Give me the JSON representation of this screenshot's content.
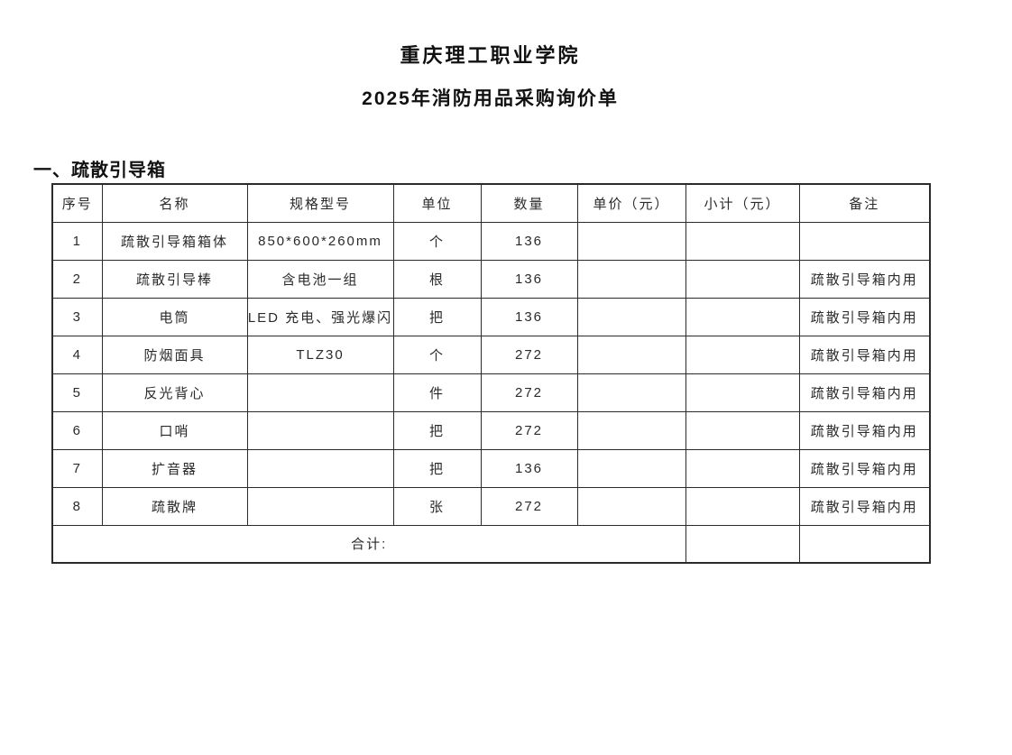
{
  "document": {
    "title": "重庆理工职业学院",
    "subtitle": "2025年消防用品采购询价单",
    "section_heading": "一、疏散引导箱"
  },
  "table": {
    "headers": [
      "序号",
      "名称",
      "规格型号",
      "单位",
      "数量",
      "单价（元）",
      "小计（元）",
      "备注"
    ],
    "rows": [
      {
        "no": "1",
        "name": "疏散引导箱箱体",
        "spec": "850*600*260mm",
        "unit": "个",
        "qty": "136",
        "unit_price": "",
        "subtotal": "",
        "remark": ""
      },
      {
        "no": "2",
        "name": "疏散引导棒",
        "spec": "含电池一组",
        "unit": "根",
        "qty": "136",
        "unit_price": "",
        "subtotal": "",
        "remark": "疏散引导箱内用"
      },
      {
        "no": "3",
        "name": "电筒",
        "spec": "LED 充电、强光爆闪",
        "unit": "把",
        "qty": "136",
        "unit_price": "",
        "subtotal": "",
        "remark": "疏散引导箱内用"
      },
      {
        "no": "4",
        "name": "防烟面具",
        "spec": "TLZ30",
        "unit": "个",
        "qty": "272",
        "unit_price": "",
        "subtotal": "",
        "remark": "疏散引导箱内用"
      },
      {
        "no": "5",
        "name": "反光背心",
        "spec": "",
        "unit": "件",
        "qty": "272",
        "unit_price": "",
        "subtotal": "",
        "remark": "疏散引导箱内用"
      },
      {
        "no": "6",
        "name": "口哨",
        "spec": "",
        "unit": "把",
        "qty": "272",
        "unit_price": "",
        "subtotal": "",
        "remark": "疏散引导箱内用"
      },
      {
        "no": "7",
        "name": "扩音器",
        "spec": "",
        "unit": "把",
        "qty": "136",
        "unit_price": "",
        "subtotal": "",
        "remark": "疏散引导箱内用"
      },
      {
        "no": "8",
        "name": "疏散牌",
        "spec": "",
        "unit": "张",
        "qty": "272",
        "unit_price": "",
        "subtotal": "",
        "remark": "疏散引导箱内用"
      }
    ],
    "total_row": {
      "label": "合计:",
      "subtotal": "",
      "remark": ""
    }
  },
  "colors": {
    "background": "#ffffff",
    "text": "#1c1c1c",
    "border": "#2b2b2b"
  }
}
